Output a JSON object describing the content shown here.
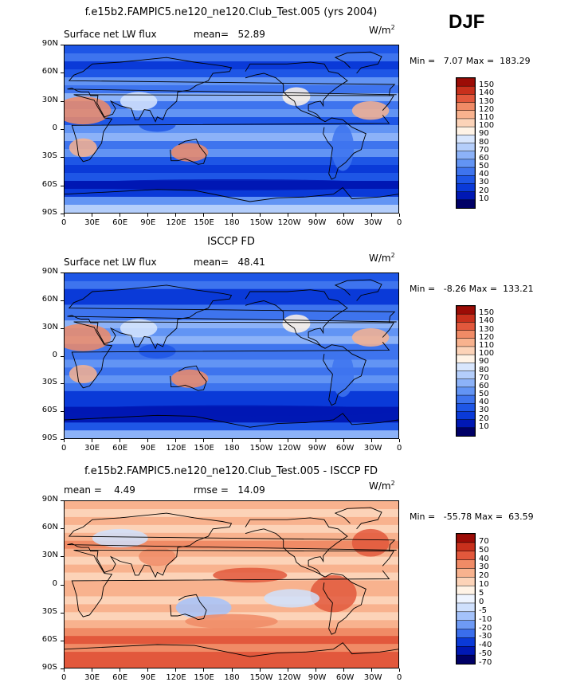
{
  "season": "DJF",
  "colors": {
    "abs": [
      "#000066",
      "#0018b4",
      "#0a3ad8",
      "#1e56e6",
      "#3e74ee",
      "#6294f4",
      "#8cb2f8",
      "#b4cefb",
      "#d8e6fd",
      "#fff3e6",
      "#fcd3b8",
      "#f8b28e",
      "#f08b66",
      "#e2583c",
      "#c8301c",
      "#9c0c06"
    ],
    "diff": [
      "#000066",
      "#0018b4",
      "#0a3ad8",
      "#3a6eec",
      "#6e9af4",
      "#a4c2fa",
      "#cfe0fd",
      "#eef4ff",
      "#fff3e6",
      "#fcd3b8",
      "#f8b28e",
      "#f08b66",
      "#e2583c",
      "#c8301c",
      "#9c0c06"
    ]
  },
  "chart_data": [
    {
      "type": "heatmap",
      "title": "f.e15b2.FAMPIC5.ne120_ne120.Club_Test.005 (yrs 2004)",
      "left_label": "Surface net LW flux",
      "stat_label": "mean=",
      "stat_value": "52.89",
      "units": "W/m",
      "units_exp": "2",
      "min_label": "Min = ",
      "min_value": "7.07",
      "max_label": "Max = ",
      "max_value": "183.29",
      "x_ticks": [
        "0",
        "30E",
        "60E",
        "90E",
        "120E",
        "150E",
        "180",
        "150W",
        "120W",
        "90W",
        "60W",
        "30W",
        "0"
      ],
      "y_ticks": [
        "90N",
        "60N",
        "30N",
        "0",
        "30S",
        "60S",
        "90S"
      ],
      "colorbar_labels": [
        "150",
        "140",
        "130",
        "120",
        "110",
        "100",
        "90",
        "80",
        "70",
        "60",
        "50",
        "40",
        "30",
        "20",
        "10"
      ],
      "palette": "abs"
    },
    {
      "type": "heatmap",
      "title": "ISCCP FD",
      "left_label": "Surface net LW flux",
      "stat_label": "mean=",
      "stat_value": "48.41",
      "units": "W/m",
      "units_exp": "2",
      "min_label": "Min = ",
      "min_value": "-8.26",
      "max_label": "Max = ",
      "max_value": "133.21",
      "x_ticks": [
        "0",
        "30E",
        "60E",
        "90E",
        "120E",
        "150E",
        "180",
        "150W",
        "120W",
        "90W",
        "60W",
        "30W",
        "0"
      ],
      "y_ticks": [
        "90N",
        "60N",
        "30N",
        "0",
        "30S",
        "60S",
        "90S"
      ],
      "colorbar_labels": [
        "150",
        "140",
        "130",
        "120",
        "110",
        "100",
        "90",
        "80",
        "70",
        "60",
        "50",
        "40",
        "30",
        "20",
        "10"
      ],
      "palette": "abs"
    },
    {
      "type": "heatmap",
      "title": "f.e15b2.FAMPIC5.ne120_ne120.Club_Test.005 - ISCCP FD",
      "left_label": "mean =",
      "left_value": "4.49",
      "stat_label": "rmse =",
      "stat_value": "14.09",
      "units": "W/m",
      "units_exp": "2",
      "min_label": "Min = ",
      "min_value": "-55.78",
      "max_label": "Max = ",
      "max_value": "63.59",
      "x_ticks": [
        "0",
        "30E",
        "60E",
        "90E",
        "120E",
        "150E",
        "180",
        "150W",
        "120W",
        "90W",
        "60W",
        "30W",
        "0"
      ],
      "y_ticks": [
        "90N",
        "60N",
        "30N",
        "0",
        "30S",
        "60S",
        "90S"
      ],
      "colorbar_labels": [
        "70",
        "50",
        "40",
        "30",
        "20",
        "10",
        "5",
        "0",
        "-5",
        "-10",
        "-20",
        "-30",
        "-40",
        "-50",
        "-70"
      ],
      "palette": "diff"
    }
  ]
}
